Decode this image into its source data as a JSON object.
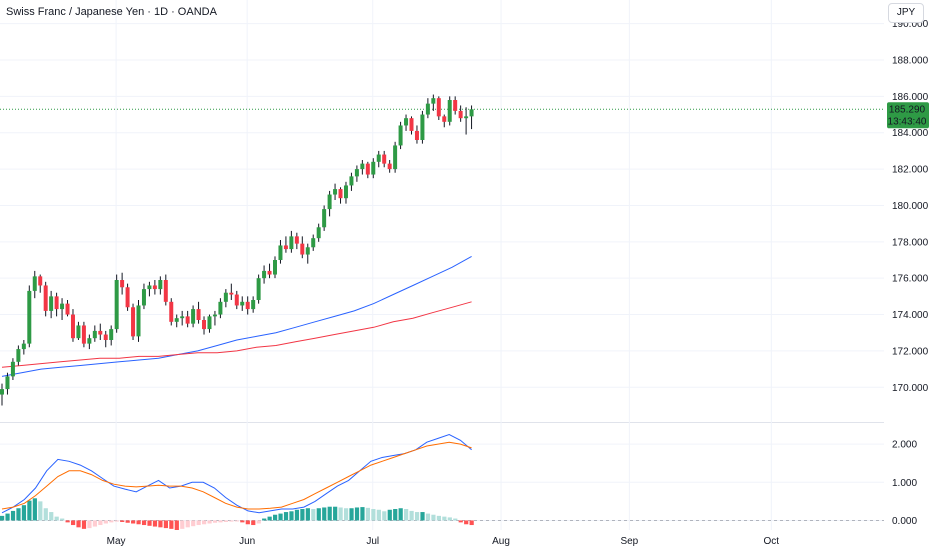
{
  "header": {
    "title": "Swiss Franc / Japanese Yen · 1D · OANDA",
    "currency_button": "JPY"
  },
  "price_tag": {
    "price": "185.290",
    "countdown": "13:43:40"
  },
  "colors": {
    "up": "#26a69a",
    "up_candle": "#2e9a45",
    "down": "#f23645",
    "ma_fast": "#2962ff",
    "ma_slow": "#f23645",
    "macd_line": "#2962ff",
    "signal_line": "#ff6d00",
    "hist_up_strong": "#26a69a",
    "hist_up_weak": "#b2dfdb",
    "hist_down_strong": "#ff5252",
    "hist_down_weak": "#ffcdd2"
  },
  "chart_data": {
    "type": "candlestick",
    "symbol": "CHFJPY",
    "interval": "1D",
    "price_axis": {
      "ticks": [
        "190.000",
        "188.000",
        "186.000",
        "184.000",
        "182.000",
        "180.000",
        "178.000",
        "176.000",
        "174.000",
        "172.000",
        "170.000"
      ],
      "range": [
        168.2,
        191.3
      ]
    },
    "indicator_axis": {
      "ticks": [
        "2.000",
        "1.000",
        "0.000"
      ],
      "range": [
        -0.25,
        2.5
      ]
    },
    "time_axis": {
      "labels": [
        "May",
        "Jun",
        "Jul",
        "Aug",
        "Sep",
        "Oct"
      ]
    },
    "last_price": 185.29,
    "candles": [
      [
        169.6,
        170.2,
        169.0,
        169.9
      ],
      [
        169.9,
        170.8,
        169.6,
        170.6
      ],
      [
        170.6,
        171.6,
        170.4,
        171.4
      ],
      [
        171.4,
        172.3,
        171.2,
        172.1
      ],
      [
        172.1,
        172.6,
        171.8,
        172.4
      ],
      [
        172.4,
        175.6,
        172.2,
        175.3
      ],
      [
        175.3,
        176.4,
        174.9,
        176.1
      ],
      [
        176.1,
        176.2,
        175.2,
        175.6
      ],
      [
        175.6,
        175.8,
        173.9,
        174.2
      ],
      [
        174.2,
        175.3,
        173.8,
        175.0
      ],
      [
        175.0,
        175.2,
        173.9,
        174.3
      ],
      [
        174.3,
        174.9,
        173.7,
        174.6
      ],
      [
        174.6,
        174.8,
        173.9,
        174.0
      ],
      [
        174.0,
        174.3,
        172.5,
        172.7
      ],
      [
        172.7,
        173.6,
        172.6,
        173.4
      ],
      [
        173.4,
        173.6,
        172.2,
        172.4
      ],
      [
        172.4,
        172.9,
        172.1,
        172.7
      ],
      [
        172.7,
        173.4,
        172.5,
        173.1
      ],
      [
        173.1,
        173.5,
        172.6,
        172.9
      ],
      [
        172.9,
        173.1,
        172.2,
        172.6
      ],
      [
        172.6,
        173.4,
        172.3,
        173.2
      ],
      [
        173.2,
        176.2,
        173.0,
        175.9
      ],
      [
        175.9,
        176.3,
        175.1,
        175.5
      ],
      [
        175.5,
        175.7,
        174.2,
        174.4
      ],
      [
        174.4,
        174.6,
        172.6,
        172.8
      ],
      [
        172.8,
        174.8,
        172.5,
        174.5
      ],
      [
        174.5,
        175.7,
        174.3,
        175.4
      ],
      [
        175.4,
        175.8,
        175.0,
        175.6
      ],
      [
        175.6,
        175.9,
        175.1,
        175.4
      ],
      [
        175.4,
        176.1,
        175.1,
        175.9
      ],
      [
        175.9,
        176.2,
        174.5,
        174.7
      ],
      [
        174.7,
        174.9,
        173.4,
        173.6
      ],
      [
        173.6,
        174.0,
        173.3,
        173.8
      ],
      [
        173.8,
        174.2,
        173.4,
        173.9
      ],
      [
        173.9,
        174.2,
        173.3,
        173.5
      ],
      [
        173.5,
        174.5,
        173.3,
        174.3
      ],
      [
        174.3,
        174.7,
        173.5,
        173.7
      ],
      [
        173.7,
        173.9,
        172.9,
        173.2
      ],
      [
        173.2,
        174.0,
        173.0,
        173.9
      ],
      [
        173.9,
        174.2,
        173.4,
        174.0
      ],
      [
        174.0,
        174.9,
        173.8,
        174.7
      ],
      [
        174.7,
        175.4,
        174.4,
        175.2
      ],
      [
        175.2,
        175.7,
        174.8,
        175.1
      ],
      [
        175.1,
        175.3,
        174.3,
        174.5
      ],
      [
        174.5,
        175.0,
        174.2,
        174.7
      ],
      [
        174.7,
        175.0,
        174.0,
        174.3
      ],
      [
        174.3,
        175.0,
        174.1,
        174.8
      ],
      [
        174.8,
        176.2,
        174.6,
        176.0
      ],
      [
        176.0,
        176.7,
        175.7,
        176.4
      ],
      [
        176.4,
        176.8,
        176.0,
        176.2
      ],
      [
        176.2,
        177.2,
        176.0,
        177.0
      ],
      [
        177.0,
        178.1,
        176.8,
        177.8
      ],
      [
        177.8,
        178.3,
        177.4,
        177.6
      ],
      [
        177.6,
        178.6,
        177.4,
        178.3
      ],
      [
        178.3,
        178.5,
        177.6,
        177.9
      ],
      [
        177.9,
        178.3,
        177.1,
        177.3
      ],
      [
        177.3,
        177.9,
        176.8,
        177.7
      ],
      [
        177.7,
        178.4,
        177.5,
        178.2
      ],
      [
        178.2,
        179.0,
        178.0,
        178.8
      ],
      [
        178.8,
        180.0,
        178.6,
        179.8
      ],
      [
        179.8,
        180.8,
        179.4,
        180.6
      ],
      [
        180.6,
        181.2,
        180.3,
        180.9
      ],
      [
        180.9,
        181.0,
        180.1,
        180.4
      ],
      [
        180.4,
        181.3,
        180.1,
        181.1
      ],
      [
        181.1,
        181.8,
        180.8,
        181.6
      ],
      [
        181.6,
        182.2,
        181.3,
        182.0
      ],
      [
        182.0,
        182.5,
        181.7,
        182.3
      ],
      [
        182.3,
        182.4,
        181.5,
        181.7
      ],
      [
        181.7,
        182.6,
        181.5,
        182.4
      ],
      [
        182.4,
        183.0,
        182.1,
        182.8
      ],
      [
        182.8,
        183.0,
        182.1,
        182.3
      ],
      [
        182.3,
        182.5,
        181.8,
        182.0
      ],
      [
        182.0,
        183.5,
        181.8,
        183.3
      ],
      [
        183.3,
        184.6,
        183.1,
        184.4
      ],
      [
        184.4,
        185.0,
        184.1,
        184.8
      ],
      [
        184.8,
        184.9,
        183.9,
        184.1
      ],
      [
        184.1,
        184.4,
        183.4,
        183.6
      ],
      [
        183.6,
        185.2,
        183.4,
        185.0
      ],
      [
        185.0,
        185.9,
        184.8,
        185.6
      ],
      [
        185.6,
        186.1,
        185.2,
        185.9
      ],
      [
        185.9,
        186.0,
        184.7,
        184.9
      ],
      [
        184.9,
        185.0,
        184.3,
        184.6
      ],
      [
        184.6,
        186.0,
        184.4,
        185.8
      ],
      [
        185.8,
        186.0,
        185.0,
        185.2
      ],
      [
        185.2,
        185.5,
        184.6,
        184.8
      ],
      [
        184.8,
        185.4,
        183.9,
        184.9
      ],
      [
        184.9,
        185.5,
        184.2,
        185.29
      ]
    ],
    "ma_fast": {
      "name": "MA fast",
      "values": [
        170.6,
        170.8,
        171.0,
        171.1,
        171.2,
        171.3,
        171.4,
        171.5,
        171.6,
        171.8,
        172.0,
        172.3,
        172.6,
        172.8,
        173.0,
        173.3,
        173.6,
        173.9,
        174.2,
        174.6,
        175.1,
        175.6,
        176.1,
        176.6,
        177.2
      ]
    },
    "ma_slow": {
      "name": "MA slow",
      "values": [
        171.1,
        171.2,
        171.3,
        171.4,
        171.5,
        171.6,
        171.6,
        171.7,
        171.7,
        171.8,
        171.9,
        171.9,
        172.0,
        172.2,
        172.3,
        172.5,
        172.7,
        172.9,
        173.1,
        173.3,
        173.6,
        173.8,
        174.1,
        174.4,
        174.7
      ]
    },
    "macd": {
      "name": "MACD",
      "values": [
        0.2,
        0.35,
        0.55,
        0.85,
        1.3,
        1.6,
        1.55,
        1.45,
        1.3,
        1.1,
        0.9,
        0.82,
        0.75,
        0.9,
        1.05,
        0.85,
        0.9,
        1.0,
        1.0,
        0.85,
        0.6,
        0.4,
        0.25,
        0.2,
        0.25,
        0.3,
        0.3,
        0.35,
        0.5,
        0.7,
        0.9,
        1.05,
        1.3,
        1.55,
        1.65,
        1.7,
        1.75,
        1.85,
        2.05,
        2.15,
        2.25,
        2.1,
        1.85
      ]
    },
    "signal": {
      "name": "Signal",
      "values": [
        0.3,
        0.35,
        0.45,
        0.65,
        0.9,
        1.15,
        1.3,
        1.3,
        1.2,
        1.05,
        0.95,
        0.9,
        0.88,
        0.9,
        0.92,
        0.9,
        0.9,
        0.85,
        0.75,
        0.6,
        0.45,
        0.35,
        0.3,
        0.3,
        0.32,
        0.35,
        0.45,
        0.55,
        0.7,
        0.85,
        1.0,
        1.15,
        1.3,
        1.45,
        1.55,
        1.65,
        1.75,
        1.85,
        1.95,
        2.0,
        2.05,
        2.0,
        1.9
      ]
    },
    "histogram": [
      0.12,
      0.18,
      0.25,
      0.32,
      0.4,
      0.52,
      0.58,
      0.5,
      0.32,
      0.22,
      0.1,
      0.05,
      -0.05,
      -0.12,
      -0.18,
      -0.22,
      -0.2,
      -0.16,
      -0.12,
      -0.08,
      -0.05,
      -0.03,
      -0.04,
      -0.06,
      -0.08,
      -0.1,
      -0.12,
      -0.14,
      -0.16,
      -0.18,
      -0.2,
      -0.22,
      -0.25,
      -0.22,
      -0.18,
      -0.15,
      -0.12,
      -0.1,
      -0.08,
      -0.06,
      -0.05,
      -0.04,
      -0.03,
      -0.02,
      -0.05,
      -0.1,
      -0.12,
      -0.08,
      0.05,
      0.1,
      0.15,
      0.18,
      0.22,
      0.24,
      0.28,
      0.3,
      0.32,
      0.3,
      0.32,
      0.34,
      0.36,
      0.36,
      0.34,
      0.32,
      0.32,
      0.34,
      0.35,
      0.33,
      0.3,
      0.28,
      0.24,
      0.28,
      0.3,
      0.32,
      0.3,
      0.25,
      0.22,
      0.22,
      0.18,
      0.15,
      0.12,
      0.1,
      0.08,
      0.05,
      -0.05,
      -0.1,
      -0.12
    ]
  }
}
